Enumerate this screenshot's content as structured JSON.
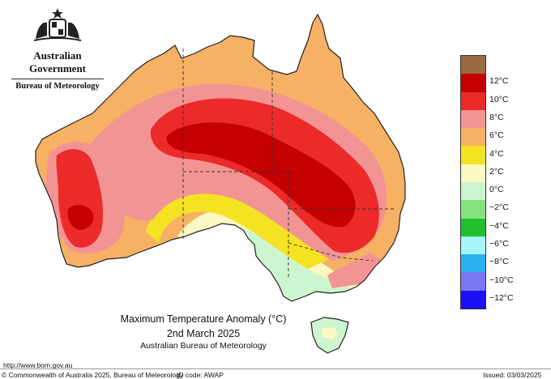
{
  "header": {
    "government": "Australian Government",
    "bureau": "Bureau of Meteorology"
  },
  "map": {
    "title": "Maximum Temperature Anomaly (°C)",
    "date": "2nd March 2025",
    "organisation": "Australian Bureau of Meteorology"
  },
  "legend": {
    "bands": [
      {
        "label": "",
        "color": "#9b6a3e"
      },
      {
        "label": "12°C",
        "color": "#c40000"
      },
      {
        "label": "10°C",
        "color": "#ec2a2a"
      },
      {
        "label": "8°C",
        "color": "#f39494"
      },
      {
        "label": "6°C",
        "color": "#f6b165"
      },
      {
        "label": "4°C",
        "color": "#f5e222"
      },
      {
        "label": "2°C",
        "color": "#fbf8c2"
      },
      {
        "label": "0°C",
        "color": "#cdf5cf"
      },
      {
        "label": "−2°C",
        "color": "#85e27f"
      },
      {
        "label": "−4°C",
        "color": "#1fbf2e"
      },
      {
        "label": "−6°C",
        "color": "#a6f6f9"
      },
      {
        "label": "−8°C",
        "color": "#2cb1ee"
      },
      {
        "label": "−10°C",
        "color": "#7b77f1"
      },
      {
        "label": "−12°C",
        "color": "#1a11f5"
      }
    ]
  },
  "footer": {
    "url": "http://www.bom.gov.au",
    "copyright": "© Commonwealth of Australia 2025, Bureau of Meteorology",
    "id_code": "ID code: AWAP",
    "issued": "Issued: 03/03/2025"
  }
}
